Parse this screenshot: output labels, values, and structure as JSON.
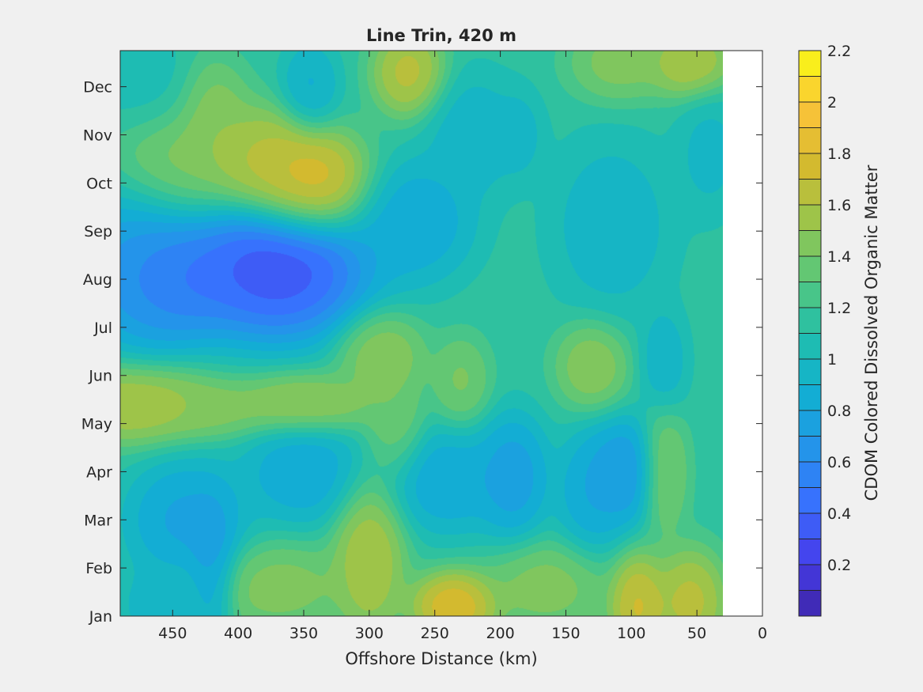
{
  "chart_data": {
    "type": "heatmap",
    "subtype": "filled-contour",
    "title": "Line Trin, 420 m",
    "xlabel": "Offshore Distance (km)",
    "ylabel": "",
    "x_reversed": true,
    "xlim": [
      0,
      490
    ],
    "x_data_extent": [
      30,
      490
    ],
    "x_ticks": [
      450,
      400,
      350,
      300,
      250,
      200,
      150,
      100,
      50,
      0
    ],
    "ylim": [
      1,
      12.75
    ],
    "y_ticks": [
      1,
      2,
      3,
      4,
      5,
      6,
      7,
      8,
      9,
      10,
      11,
      12
    ],
    "y_tick_labels": [
      "Jan",
      "Feb",
      "Mar",
      "Apr",
      "May",
      "Jun",
      "Jul",
      "Aug",
      "Sep",
      "Oct",
      "Nov",
      "Dec"
    ],
    "colorbar": {
      "label": "CDOM Colored Dissolved Organic Matter",
      "range": [
        0,
        2.2
      ],
      "levels": [
        0,
        0.1,
        0.2,
        0.3,
        0.4,
        0.5,
        0.6,
        0.7,
        0.8,
        0.9,
        1.0,
        1.1,
        1.2,
        1.3,
        1.4,
        1.5,
        1.6,
        1.7,
        1.8,
        1.9,
        2.0,
        2.1,
        2.2
      ],
      "ticks": [
        0.2,
        0.4,
        0.6,
        0.8,
        1,
        1.2,
        1.4,
        1.6,
        1.8,
        2,
        2.2
      ]
    },
    "base_value": 1.15,
    "features": [
      {
        "x": 370,
        "y": 8.2,
        "value": 0.05,
        "sx": 38,
        "sy": 0.8
      },
      {
        "x": 455,
        "y": 8.1,
        "value": 0.25,
        "sx": 30,
        "sy": 0.75
      },
      {
        "x": 475,
        "y": 8.4,
        "value": 0.7,
        "sx": 25,
        "sy": 1.0
      },
      {
        "x": 345,
        "y": 10.0,
        "value": 2.0,
        "sx": 25,
        "sy": 0.6
      },
      {
        "x": 385,
        "y": 10.5,
        "value": 1.75,
        "sx": 25,
        "sy": 0.6
      },
      {
        "x": 450,
        "y": 10.4,
        "value": 1.55,
        "sx": 25,
        "sy": 0.7
      },
      {
        "x": 420,
        "y": 11.5,
        "value": 1.55,
        "sx": 15,
        "sy": 0.6
      },
      {
        "x": 270,
        "y": 12.3,
        "value": 1.8,
        "sx": 15,
        "sy": 0.5
      },
      {
        "x": 55,
        "y": 12.5,
        "value": 1.75,
        "sx": 18,
        "sy": 0.4
      },
      {
        "x": 110,
        "y": 12.5,
        "value": 1.55,
        "sx": 20,
        "sy": 0.45
      },
      {
        "x": 470,
        "y": 12.0,
        "value": 1.0,
        "sx": 22,
        "sy": 0.6
      },
      {
        "x": 345,
        "y": 12.0,
        "value": 0.8,
        "sx": 12,
        "sy": 0.5
      },
      {
        "x": 220,
        "y": 11.0,
        "value": 0.85,
        "sx": 20,
        "sy": 0.7
      },
      {
        "x": 185,
        "y": 11.0,
        "value": 0.9,
        "sx": 10,
        "sy": 0.5
      },
      {
        "x": 265,
        "y": 9.2,
        "value": 0.7,
        "sx": 25,
        "sy": 0.7
      },
      {
        "x": 115,
        "y": 9.1,
        "value": 0.85,
        "sx": 25,
        "sy": 1.0
      },
      {
        "x": 40,
        "y": 10.6,
        "value": 0.9,
        "sx": 14,
        "sy": 0.7
      },
      {
        "x": 480,
        "y": 5.4,
        "value": 1.75,
        "sx": 35,
        "sy": 0.45
      },
      {
        "x": 350,
        "y": 5.4,
        "value": 1.65,
        "sx": 30,
        "sy": 0.35
      },
      {
        "x": 420,
        "y": 5.3,
        "value": 1.5,
        "sx": 22,
        "sy": 0.3
      },
      {
        "x": 290,
        "y": 6.4,
        "value": 1.6,
        "sx": 18,
        "sy": 0.5
      },
      {
        "x": 130,
        "y": 6.2,
        "value": 1.6,
        "sx": 15,
        "sy": 0.5
      },
      {
        "x": 280,
        "y": 5.0,
        "value": 1.45,
        "sx": 12,
        "sy": 0.6
      },
      {
        "x": 230,
        "y": 5.9,
        "value": 1.5,
        "sx": 12,
        "sy": 0.5
      },
      {
        "x": 75,
        "y": 6.3,
        "value": 0.85,
        "sx": 10,
        "sy": 0.6
      },
      {
        "x": 75,
        "y": 4.0,
        "value": 1.55,
        "sx": 10,
        "sy": 0.7
      },
      {
        "x": 440,
        "y": 3.0,
        "value": 0.65,
        "sx": 25,
        "sy": 0.7
      },
      {
        "x": 350,
        "y": 4.0,
        "value": 0.7,
        "sx": 25,
        "sy": 0.6
      },
      {
        "x": 240,
        "y": 3.8,
        "value": 0.7,
        "sx": 25,
        "sy": 0.6
      },
      {
        "x": 190,
        "y": 3.9,
        "value": 0.6,
        "sx": 15,
        "sy": 0.7
      },
      {
        "x": 130,
        "y": 3.6,
        "value": 0.7,
        "sx": 15,
        "sy": 0.7
      },
      {
        "x": 105,
        "y": 4.0,
        "value": 0.55,
        "sx": 15,
        "sy": 0.6
      },
      {
        "x": 420,
        "y": 2.0,
        "value": 0.6,
        "sx": 10,
        "sy": 0.8
      },
      {
        "x": 300,
        "y": 2.2,
        "value": 1.75,
        "sx": 15,
        "sy": 0.9
      },
      {
        "x": 235,
        "y": 1.2,
        "value": 2.0,
        "sx": 18,
        "sy": 0.4
      },
      {
        "x": 95,
        "y": 1.2,
        "value": 1.9,
        "sx": 12,
        "sy": 0.6
      },
      {
        "x": 55,
        "y": 1.3,
        "value": 1.8,
        "sx": 15,
        "sy": 0.6
      },
      {
        "x": 370,
        "y": 1.6,
        "value": 1.55,
        "sx": 30,
        "sy": 0.5
      },
      {
        "x": 165,
        "y": 1.6,
        "value": 1.55,
        "sx": 25,
        "sy": 0.5
      },
      {
        "x": 460,
        "y": 1.2,
        "value": 0.9,
        "sx": 20,
        "sy": 0.5
      }
    ]
  }
}
